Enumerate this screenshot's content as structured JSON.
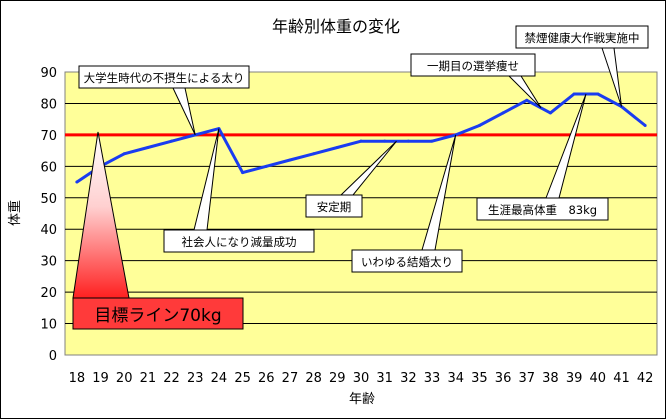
{
  "chart_data": {
    "type": "line",
    "title": "年齢別体重の変化",
    "xlabel": "年齢",
    "ylabel": "体重",
    "x": [
      18,
      19,
      20,
      21,
      22,
      23,
      24,
      25,
      26,
      27,
      28,
      29,
      30,
      31,
      32,
      33,
      34,
      35,
      36,
      37,
      38,
      39,
      40,
      41,
      42
    ],
    "values": [
      55,
      60,
      64,
      66,
      68,
      70,
      72,
      58,
      60,
      62,
      64,
      66,
      68,
      68,
      68,
      68,
      70,
      73,
      77,
      81,
      77,
      83,
      83,
      79,
      73
    ],
    "ylim": [
      0,
      90
    ],
    "yticks": [
      0,
      10,
      20,
      30,
      40,
      50,
      60,
      70,
      80,
      90
    ],
    "grid": "horizontal",
    "series_color": "#1a3cf0",
    "plot_bg": "#ffff99",
    "target": {
      "value": 70,
      "label": "目標ライン70kg",
      "color": "#ff0000"
    },
    "annotations": [
      {
        "text": "大学生時代の不摂生による太り",
        "x": 23
      },
      {
        "text": "社会人になり減量成功",
        "x": 24
      },
      {
        "text": "安定期",
        "x": 31.5
      },
      {
        "text": "いわゆる結婚太り",
        "x": 34
      },
      {
        "text": "一期目の選挙痩せ",
        "x": 37.6
      },
      {
        "text": "生涯最高体重　83kg",
        "x": 39.5
      },
      {
        "text": "禁煙健康大作戦実施中",
        "x": 41
      }
    ]
  }
}
